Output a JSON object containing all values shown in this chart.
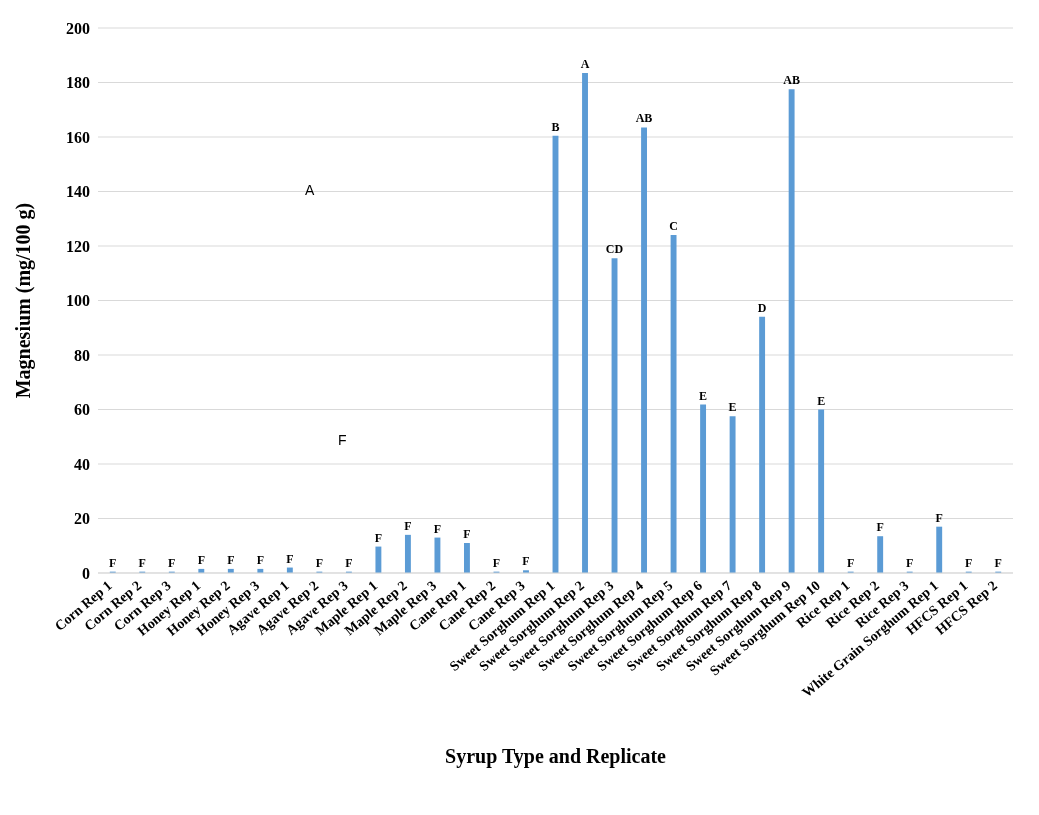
{
  "chart_data": {
    "type": "bar",
    "xlabel": "Syrup Type and Replicate",
    "ylabel": "Magnesium (mg/100 g)",
    "categories": [
      "Corn Rep 1",
      "Corn Rep 2",
      "Corn Rep 3",
      "Honey Rep 1",
      "Honey Rep 2",
      "Honey Rep 3",
      "Agave Rep 1",
      "Agave Rep 2",
      "Agave Rep 3",
      "Maple Rep 1",
      "Maple Rep 2",
      "Maple Rep 3",
      "Cane Rep 1",
      "Cane Rep 2",
      "Cane Rep 3",
      "Sweet Sorghum Rep 1",
      "Sweet Sorghum Rep 2",
      "Sweet Sorghum Rep 3",
      "Sweet Sorghum Rep 4",
      "Sweet Sorghum Rep 5",
      "Sweet Sorghum Rep 6",
      "Sweet Sorghum Rep 7",
      "Sweet Sorghum Rep 8",
      "Sweet Sorghum Rep 9",
      "Sweet Sorghum Rep 10",
      "Rice Rep 1",
      "Rice Rep 2",
      "Rice Rep 3",
      "White Grain Sorghum Rep 1",
      "HFCS Rep 1",
      "HFCS Rep 2"
    ],
    "values": [
      0.5,
      0.5,
      0.5,
      1.5,
      1.5,
      1.5,
      2,
      0.5,
      0.5,
      9.7,
      14,
      13,
      11,
      0.5,
      1,
      160.5,
      183.5,
      115.5,
      163.5,
      124,
      61.8,
      57.5,
      94,
      177.5,
      60,
      0.5,
      13.5,
      0.5,
      17,
      0.5,
      0.5
    ],
    "value_labels": [
      "F",
      "F",
      "F",
      "F",
      "F",
      "F",
      "F",
      "F",
      "F",
      "F",
      "F",
      "F",
      "F",
      "F",
      "F",
      "B",
      "A",
      "CD",
      "AB",
      "C",
      "E",
      "E",
      "D",
      "AB",
      "E",
      "F",
      "F",
      "F",
      "F",
      "F",
      "F"
    ],
    "color": "#5b9bd5",
    "ylim": [
      0,
      200
    ],
    "yticks": [
      0,
      20,
      40,
      60,
      80,
      100,
      120,
      140,
      160,
      180,
      200
    ],
    "grid": "y",
    "annotations": [
      "A",
      "F"
    ]
  }
}
